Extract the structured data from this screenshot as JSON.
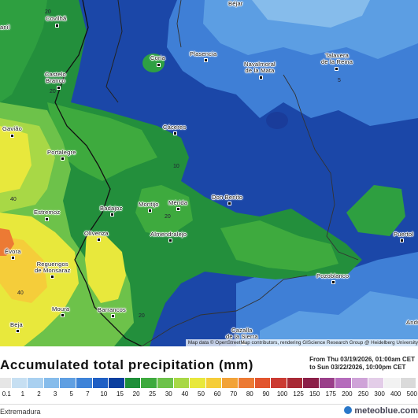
{
  "map": {
    "cities": [
      {
        "name": "Béjar"
      },
      {
        "name": "Covilhã"
      },
      {
        "name": "anil"
      },
      {
        "name": "Coria"
      },
      {
        "name": "Plasencia"
      },
      {
        "name": "Navalmoral\nde la Mata"
      },
      {
        "name": "Talavera\nde la Reina"
      },
      {
        "name": "Castelo\nBranco"
      },
      {
        "name": "Cáceres"
      },
      {
        "name": "Gavião"
      },
      {
        "name": "Portalegre"
      },
      {
        "name": "Don Benito"
      },
      {
        "name": "Badajoz"
      },
      {
        "name": "Montijo"
      },
      {
        "name": "Mérida"
      },
      {
        "name": "Estremoz"
      },
      {
        "name": "Almendralejo"
      },
      {
        "name": "Olivenza"
      },
      {
        "name": "Puertol"
      },
      {
        "name": "Évora"
      },
      {
        "name": "Reguengos\nde Monsaraz"
      },
      {
        "name": "Pozoblanco"
      },
      {
        "name": "Moura"
      },
      {
        "name": "Barrancos"
      },
      {
        "name": "Beja"
      },
      {
        "name": "Cazalla\nde la Sierra"
      },
      {
        "name": "Andú"
      }
    ],
    "contour_labels": [
      "20",
      "20",
      "5",
      "10",
      "20",
      "40",
      "20",
      "40"
    ],
    "attribution": "Map data © OpenStreetMap contributors, rendering GIScience Research Group @ Heidelberg University"
  },
  "header": {
    "title": "Accumulated total precipitation (mm)",
    "period_from": "From Thu 03/19/2026, 01:00am CET",
    "period_to": "to Sun 03/22/2026, 10:00pm CET"
  },
  "legend": {
    "ticks": [
      "0.1",
      "1",
      "2",
      "3",
      "5",
      "7",
      "10",
      "15",
      "20",
      "25",
      "30",
      "40",
      "50",
      "60",
      "70",
      "80",
      "90",
      "100",
      "125",
      "150",
      "175",
      "200",
      "250",
      "300",
      "400",
      "500"
    ],
    "colors": [
      "#e6e6e6",
      "#c6dff2",
      "#a9d0f0",
      "#86bceb",
      "#5f9fe2",
      "#3e83d8",
      "#1f5fc4",
      "#0b3f9f",
      "#1f8f3a",
      "#3eaa3e",
      "#6dc24a",
      "#a8d846",
      "#e8e83c",
      "#f5cd3a",
      "#f2a338",
      "#ec7a34",
      "#e2552e",
      "#cb3a32",
      "#a82a36",
      "#8b1f48",
      "#9a3f8a",
      "#b56cbc",
      "#cfa3d8",
      "#e3cde8",
      "#f2f2f2",
      "#dadada"
    ]
  },
  "footer": {
    "region": "Extremadura",
    "brand": "meteoblue.com"
  }
}
